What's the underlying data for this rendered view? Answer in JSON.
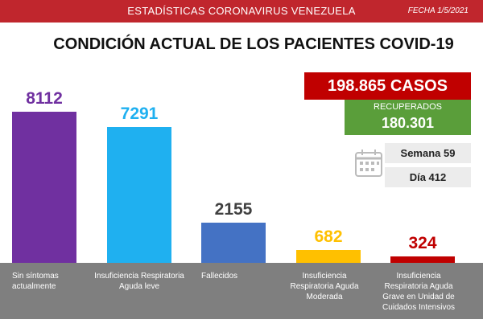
{
  "header": {
    "title": "ESTADÍSTICAS CORONAVIRUS VENEZUELA",
    "date": "FECHA 1/5/2021"
  },
  "chart_data": {
    "type": "bar",
    "title": "CONDICIÓN ACTUAL DE LOS PACIENTES COVID-19",
    "categories": [
      "Sin síntomas actualmente",
      "Insuficiencia Respiratoria Aguda leve",
      "Fallecidos",
      "Insuficiencia Respiratoria Aguda Moderada",
      "Insuficiencia Respiratoria Aguda Grave en Unidad de Cuidados Intensivos"
    ],
    "values": [
      8112,
      7291,
      2155,
      682,
      324
    ],
    "colors": [
      "#7030a0",
      "#1fb0f0",
      "#4472c4",
      "#ffc000",
      "#c00000"
    ],
    "label_colors": [
      "#7030a0",
      "#1fb0f0",
      "#404040",
      "#ffc000",
      "#c00000"
    ]
  },
  "summary": {
    "cases": "198.865 CASOS",
    "recovered_label": "RECUPERADOS",
    "recovered": "180.301",
    "week": "Semana 59",
    "day": "Día 412"
  }
}
